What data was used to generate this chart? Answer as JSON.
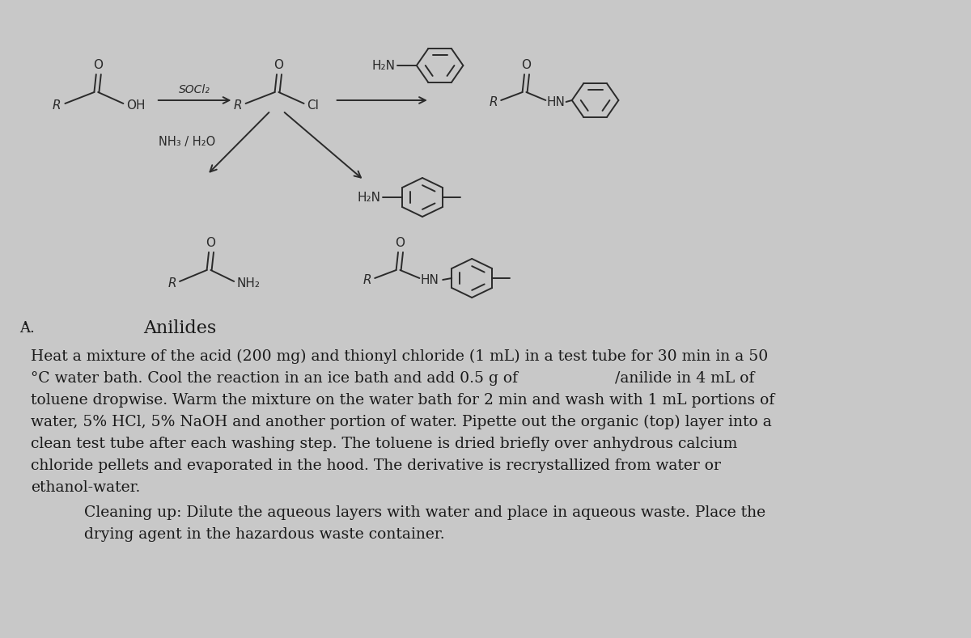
{
  "bg_color": "#ffffff",
  "sidebar_color": "#c8c8c8",
  "line_color": "#2a2a2a",
  "text_color": "#1a1a1a",
  "subtitle": "Anilides",
  "body_lines": [
    "Heat a mixture of the acid (200 mg) and thionyl chloride (1 mL) in a test tube for 30 min in a 50",
    "°C water bath. Cool the reaction in an ice bath and add 0.5 g of                    /anilide in 4 mL of",
    "toluene dropwise. Warm the mixture on the water bath for 2 min and wash with 1 mL portions of",
    "water, 5% HCl, 5% NaOH and another portion of water. Pipette out the organic (top) layer into a",
    "clean test tube after each washing step. The toluene is dried briefly over anhydrous calcium",
    "chloride pellets and evaporated in the hood. The derivative is recrystallized from water or",
    "ethanol-water."
  ],
  "cleanup_lines": [
    "Cleaning up: Dilute the aqueous layers with water and place in aqueous waste. Place the",
    "drying agent in the hazardous waste container."
  ],
  "lw": 1.4,
  "ring_r": 24,
  "font_body": 13.5,
  "font_chem": 11,
  "font_title": 16
}
